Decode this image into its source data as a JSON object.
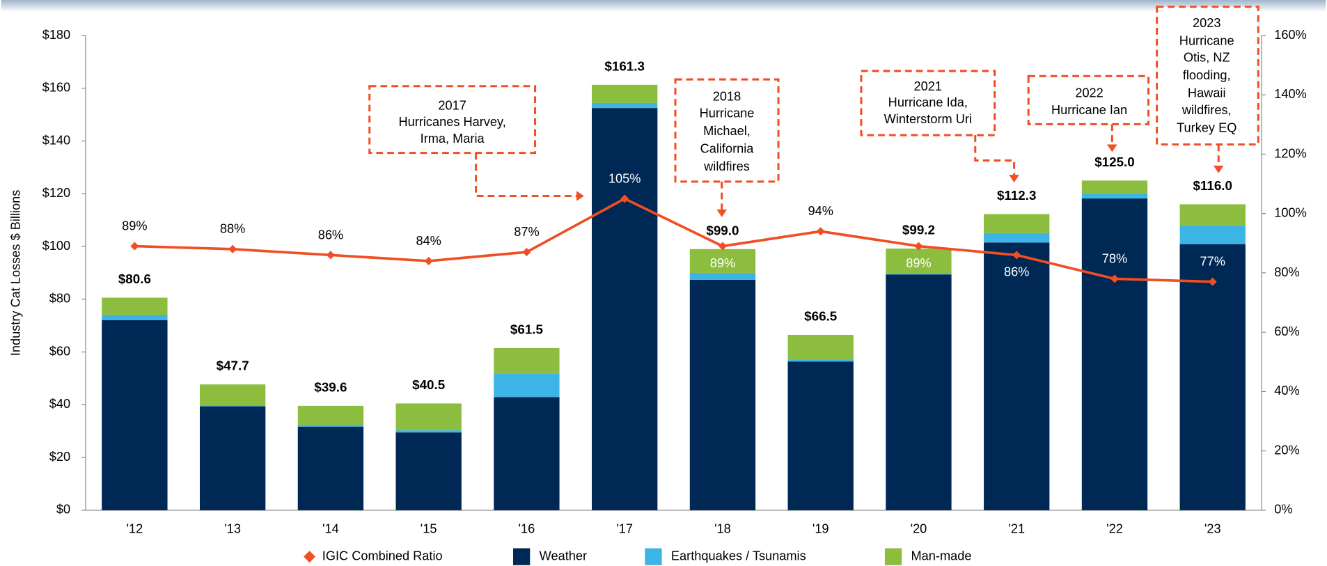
{
  "chart_data": {
    "type": "bar",
    "stacked": true,
    "y_label": "Industry Cat Losses $ Billions",
    "categories": [
      "'12",
      "'13",
      "'14",
      "'15",
      "'16",
      "'17",
      "'18",
      "'19",
      "'20",
      "'21",
      "'22",
      "'23"
    ],
    "series": [
      {
        "name": "IGIC Combined Ratio",
        "type": "line",
        "axis": "y2",
        "color": "#f04e23",
        "values": [
          89,
          88,
          86,
          84,
          87,
          105,
          89,
          94,
          89,
          86,
          78,
          77
        ],
        "value_labels": [
          "89%",
          "88%",
          "86%",
          "84%",
          "87%",
          "105%",
          "89%",
          "94%",
          "89%",
          "86%",
          "78%",
          "77%"
        ]
      },
      {
        "name": "Weather",
        "color": "#002855",
        "values": [
          72.1,
          39.4,
          31.7,
          29.5,
          42.9,
          152.5,
          87.4,
          56.4,
          89.4,
          101.5,
          118.2,
          100.9
        ]
      },
      {
        "name": "Earthquakes / Tsunamis",
        "color": "#3cb4e5",
        "values": [
          1.9,
          0.3,
          0.6,
          0.8,
          9.0,
          1.9,
          2.6,
          0.7,
          0.3,
          3.6,
          1.9,
          7.0
        ]
      },
      {
        "name": "Man-made",
        "color": "#8cbd3f",
        "values": [
          6.6,
          8.0,
          7.3,
          10.2,
          9.6,
          6.9,
          9.0,
          9.4,
          9.5,
          7.2,
          4.9,
          8.1
        ]
      }
    ],
    "totals": [
      80.6,
      47.7,
      39.6,
      40.5,
      61.5,
      161.3,
      99.0,
      66.5,
      99.2,
      112.3,
      125.0,
      116.0
    ],
    "total_labels": [
      "$80.6",
      "$47.7",
      "$39.6",
      "$40.5",
      "$61.5",
      "$161.3",
      "$99.0",
      "$66.5",
      "$99.2",
      "$112.3",
      "$125.0",
      "$116.0"
    ],
    "ylim": [
      0,
      180
    ],
    "yticks": [
      {
        "value": 0,
        "label": "$0"
      },
      {
        "value": 20,
        "label": "$20"
      },
      {
        "value": 40,
        "label": "$40"
      },
      {
        "value": 60,
        "label": "$60"
      },
      {
        "value": 80,
        "label": "$80"
      },
      {
        "value": 100,
        "label": "$100"
      },
      {
        "value": 120,
        "label": "$120"
      },
      {
        "value": 140,
        "label": "$140"
      },
      {
        "value": 160,
        "label": "$160"
      },
      {
        "value": 180,
        "label": "$180"
      }
    ],
    "y2lim": [
      0,
      160
    ],
    "y2ticks": [
      {
        "value": 0,
        "label": "0%"
      },
      {
        "value": 20,
        "label": "20%"
      },
      {
        "value": 40,
        "label": "40%"
      },
      {
        "value": 60,
        "label": "60%"
      },
      {
        "value": 80,
        "label": "80%"
      },
      {
        "value": 100,
        "label": "100%"
      },
      {
        "value": 120,
        "label": "120%"
      },
      {
        "value": 140,
        "label": "140%"
      },
      {
        "value": 160,
        "label": "160%"
      }
    ],
    "legend": "bottom",
    "annotations": [
      {
        "lines": [
          "2017",
          "Hurricanes Harvey,",
          "Irma, Maria"
        ]
      },
      {
        "lines": [
          "2018",
          "Hurricane",
          "Michael,",
          "California",
          "wildfires"
        ]
      },
      {
        "lines": [
          "2021",
          "Hurricane Ida,",
          "Winterstorm Uri"
        ]
      },
      {
        "lines": [
          "2022",
          "Hurricane Ian"
        ]
      },
      {
        "lines": [
          "2023",
          "Hurricane",
          "Otis, NZ",
          "flooding,",
          "Hawaii",
          "wildfires,",
          "Turkey EQ"
        ]
      }
    ]
  }
}
